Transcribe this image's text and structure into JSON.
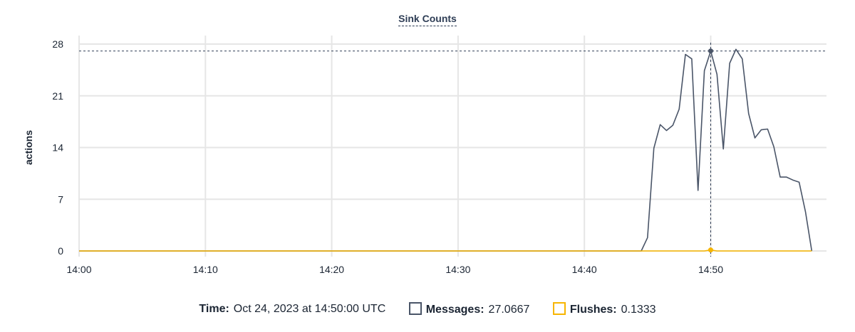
{
  "chart_data": {
    "type": "line",
    "title": "Sink Counts",
    "xlabel": "",
    "ylabel": "actions",
    "xlim": [
      "14:00",
      "14:59:10"
    ],
    "ylim": [
      0,
      28
    ],
    "x_ticks": [
      "14:00",
      "14:10",
      "14:20",
      "14:30",
      "14:40",
      "14:50"
    ],
    "y_ticks": [
      0,
      7,
      14,
      21,
      28
    ],
    "grid": true,
    "series": [
      {
        "name": "Messages",
        "color": "#4a5568",
        "points": [
          [
            "14:00:00",
            0
          ],
          [
            "14:44:30",
            0
          ],
          [
            "14:45:00",
            1.8
          ],
          [
            "14:45:30",
            13.9
          ],
          [
            "14:46:00",
            17.1
          ],
          [
            "14:46:30",
            16.3
          ],
          [
            "14:47:00",
            17.0
          ],
          [
            "14:47:30",
            19.2
          ],
          [
            "14:48:00",
            26.6
          ],
          [
            "14:48:30",
            26.0
          ],
          [
            "14:49:00",
            8.2
          ],
          [
            "14:49:30",
            24.4
          ],
          [
            "14:50:00",
            27.0667
          ],
          [
            "14:50:30",
            23.9
          ],
          [
            "14:51:00",
            13.8
          ],
          [
            "14:51:30",
            25.4
          ],
          [
            "14:52:00",
            27.3
          ],
          [
            "14:52:30",
            26.0
          ],
          [
            "14:53:00",
            18.6
          ],
          [
            "14:53:30",
            15.3
          ],
          [
            "14:54:00",
            16.4
          ],
          [
            "14:54:30",
            16.5
          ],
          [
            "14:55:00",
            14.1
          ],
          [
            "14:55:30",
            10.0
          ],
          [
            "14:56:00",
            10.0
          ],
          [
            "14:56:30",
            9.6
          ],
          [
            "14:57:00",
            9.3
          ],
          [
            "14:57:30",
            5.3
          ],
          [
            "14:58:00",
            0
          ]
        ]
      },
      {
        "name": "Flushes",
        "color": "#f7b500",
        "points": [
          [
            "14:00:00",
            0
          ],
          [
            "14:49:30",
            0
          ],
          [
            "14:50:00",
            0.1333
          ],
          [
            "14:50:30",
            0
          ],
          [
            "14:58:00",
            0
          ]
        ]
      }
    ],
    "crosshair": {
      "x": "14:50:00",
      "y": 27.0667
    }
  },
  "legend": {
    "time_label": "Time:",
    "time_value": "Oct 24, 2023 at 14:50:00 UTC",
    "messages_label": "Messages:",
    "messages_value": "27.0667",
    "flushes_label": "Flushes:",
    "flushes_value": "0.1333"
  }
}
